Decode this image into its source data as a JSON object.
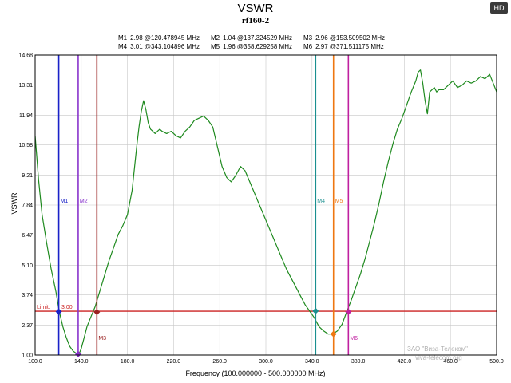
{
  "header": {
    "title": "VSWR",
    "subtitle": "rf160-2",
    "badge": "HD"
  },
  "watermark": {
    "line1": "ЗАО \"Виза-Телеком\"",
    "line2": "viva-telecom.org"
  },
  "chart_data": {
    "type": "line",
    "title": "VSWR",
    "subtitle": "rf160-2",
    "xlabel": "Frequency (100.000000 - 500.000000 MHz)",
    "ylabel": "VSWR",
    "xlim": [
      100,
      500
    ],
    "ylim": [
      1.0,
      14.68
    ],
    "xticks": [
      "100.0",
      "140.0",
      "180.0",
      "220.0",
      "260.0",
      "300.0",
      "340.0",
      "380.0",
      "420.0",
      "460.0",
      "500.0"
    ],
    "yticks": [
      "1.00",
      "2.37",
      "3.74",
      "5.10",
      "6.47",
      "7.84",
      "9.21",
      "10.58",
      "11.94",
      "13.31",
      "14.68"
    ],
    "grid": true,
    "limit": {
      "label": "Limit:",
      "value": 3.0,
      "value_label": "3.00",
      "color": "#cc2222"
    },
    "series": [
      {
        "color": "#1f8a1f",
        "x": [
          100,
          103,
          106,
          110,
          114,
          118,
          121,
          124,
          127,
          130,
          133,
          136,
          138,
          140,
          142,
          145,
          148,
          152,
          156,
          160,
          164,
          168,
          172,
          176,
          180,
          184,
          186,
          188,
          190,
          192,
          194,
          196,
          198,
          200,
          202,
          204,
          206,
          208,
          210,
          214,
          218,
          222,
          226,
          230,
          234,
          238,
          242,
          246,
          250,
          254,
          258,
          262,
          266,
          270,
          274,
          278,
          282,
          286,
          290,
          294,
          298,
          302,
          306,
          310,
          314,
          318,
          322,
          326,
          330,
          334,
          338,
          342,
          346,
          350,
          354,
          358,
          362,
          366,
          370,
          374,
          378,
          382,
          386,
          390,
          394,
          398,
          402,
          406,
          410,
          414,
          418,
          422,
          426,
          430,
          432,
          434,
          436,
          438,
          440,
          442,
          444,
          446,
          448,
          450,
          454,
          458,
          462,
          466,
          470,
          474,
          478,
          482,
          486,
          490,
          494,
          497,
          500
        ],
        "y": [
          11.0,
          9.0,
          7.4,
          6.1,
          4.9,
          3.9,
          2.98,
          2.3,
          1.8,
          1.4,
          1.18,
          1.07,
          1.04,
          1.3,
          1.7,
          2.3,
          2.7,
          3.2,
          3.9,
          4.6,
          5.3,
          5.9,
          6.5,
          6.9,
          7.4,
          8.5,
          9.5,
          10.5,
          11.4,
          12.1,
          12.6,
          12.2,
          11.6,
          11.3,
          11.2,
          11.1,
          11.2,
          11.3,
          11.2,
          11.1,
          11.2,
          11.0,
          10.9,
          11.2,
          11.4,
          11.7,
          11.8,
          11.9,
          11.7,
          11.4,
          10.5,
          9.6,
          9.1,
          8.9,
          9.2,
          9.6,
          9.4,
          8.9,
          8.4,
          7.9,
          7.4,
          6.9,
          6.4,
          5.9,
          5.4,
          4.9,
          4.5,
          4.1,
          3.7,
          3.3,
          3.0,
          2.7,
          2.3,
          2.1,
          1.96,
          1.96,
          2.1,
          2.4,
          2.97,
          3.5,
          4.1,
          4.7,
          5.4,
          6.2,
          7.0,
          7.9,
          8.9,
          9.8,
          10.6,
          11.3,
          11.8,
          12.4,
          13.0,
          13.5,
          13.9,
          14.0,
          13.4,
          12.6,
          12.0,
          13.0,
          13.1,
          13.2,
          13.0,
          13.1,
          13.1,
          13.3,
          13.5,
          13.2,
          13.3,
          13.5,
          13.4,
          13.5,
          13.7,
          13.6,
          13.8,
          13.4,
          13.0
        ]
      }
    ],
    "markers": [
      {
        "name": "M1",
        "x": 120.478945,
        "y": 2.98,
        "readout": "2.98 @120.478945 MHz",
        "color": "#1a22c8",
        "label_pos": "top"
      },
      {
        "name": "M2",
        "x": 137.324529,
        "y": 1.04,
        "readout": "1.04 @137.324529 MHz",
        "color": "#8833cc",
        "label_pos": "top"
      },
      {
        "name": "M3",
        "x": 153.509502,
        "y": 2.96,
        "readout": "2.96 @153.509502 MHz",
        "color": "#9a2222",
        "label_pos": "bottom"
      },
      {
        "name": "M4",
        "x": 343.104896,
        "y": 3.01,
        "readout": "3.01 @343.104896 MHz",
        "color": "#1a8f8f",
        "label_pos": "top"
      },
      {
        "name": "M5",
        "x": 358.629258,
        "y": 1.96,
        "readout": "1.96 @358.629258 MHz",
        "color": "#ee7711",
        "label_pos": "top"
      },
      {
        "name": "M6",
        "x": 371.511175,
        "y": 2.97,
        "readout": "2.97 @371.511175 MHz",
        "color": "#c020a0",
        "label_pos": "bottom"
      }
    ]
  }
}
